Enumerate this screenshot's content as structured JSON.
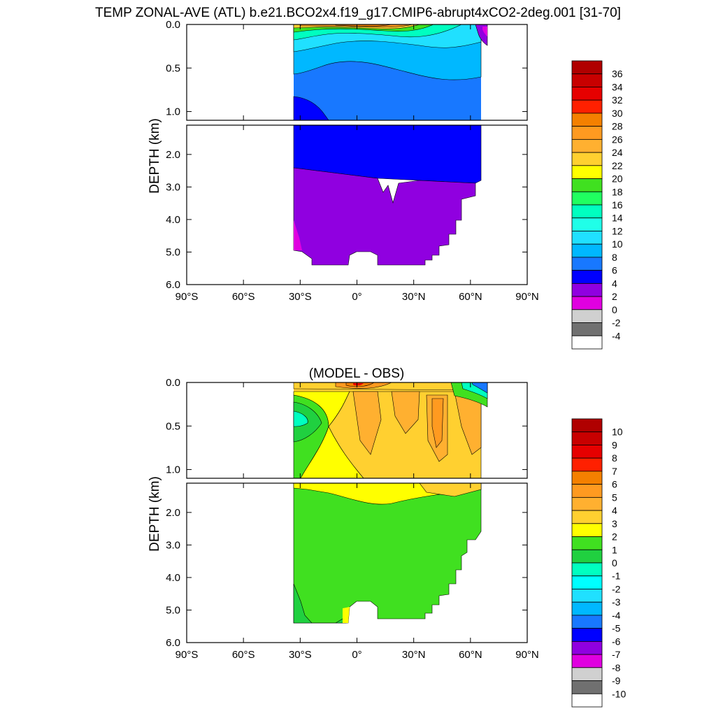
{
  "figure": {
    "title": "TEMP ZONAL-AVE (ATL) b.e21.BCO2x4.f19_g17.CMIP6-abrupt4xCO2-2deg.001 [31-70]"
  },
  "chart_data": [
    {
      "type": "heatmap",
      "subtitle": "",
      "ylabel": "DEPTH (km)",
      "x_tick_labels": [
        "90°S",
        "60°S",
        "30°S",
        "0°",
        "30°N",
        "60°N",
        "90°N"
      ],
      "x_ticks": [
        -90,
        -60,
        -30,
        0,
        30,
        60,
        90
      ],
      "xlim": [
        -90,
        90
      ],
      "upper_panel": {
        "ylim": [
          0,
          1.1
        ],
        "y_ticks": [
          0.0,
          0.5,
          1.0
        ],
        "y_tick_labels": [
          "0.0",
          "0.5",
          "1.0"
        ]
      },
      "lower_panel": {
        "ylim": [
          1.1,
          6.0
        ],
        "y_ticks": [
          2.0,
          3.0,
          4.0,
          5.0,
          6.0
        ],
        "y_tick_labels": [
          "2.0",
          "3.0",
          "4.0",
          "5.0",
          "6.0"
        ]
      },
      "colorbar": {
        "labels": [
          "36",
          "34",
          "32",
          "30",
          "28",
          "26",
          "24",
          "22",
          "20",
          "18",
          "16",
          "14",
          "12",
          "10",
          "8",
          "6",
          "4",
          "2",
          "0",
          "-2",
          "-4"
        ],
        "colors": [
          "#b00000",
          "#c80000",
          "#e60000",
          "#ff2000",
          "#f48000",
          "#ff9a20",
          "#ffb030",
          "#ffd030",
          "#ffff00",
          "#40e020",
          "#20ff60",
          "#00ffc0",
          "#20ffe8",
          "#20e0ff",
          "#00b8ff",
          "#1878ff",
          "#0000ff",
          "#9000e0",
          "#e000e0",
          "#d0d0d0",
          "#707070",
          "#ffffff"
        ]
      }
    },
    {
      "type": "heatmap",
      "subtitle": "(MODEL - OBS)",
      "ylabel": "DEPTH (km)",
      "x_tick_labels": [
        "90°S",
        "60°S",
        "30°S",
        "0°",
        "30°N",
        "60°N",
        "90°N"
      ],
      "x_ticks": [
        -90,
        -60,
        -30,
        0,
        30,
        60,
        90
      ],
      "xlim": [
        -90,
        90
      ],
      "upper_panel": {
        "ylim": [
          0,
          1.1
        ],
        "y_ticks": [
          0.0,
          0.5,
          1.0
        ],
        "y_tick_labels": [
          "0.0",
          "0.5",
          "1.0"
        ]
      },
      "lower_panel": {
        "ylim": [
          1.1,
          6.0
        ],
        "y_ticks": [
          2.0,
          3.0,
          4.0,
          5.0,
          6.0
        ],
        "y_tick_labels": [
          "2.0",
          "3.0",
          "4.0",
          "5.0",
          "6.0"
        ]
      },
      "colorbar": {
        "labels": [
          "10",
          "9",
          "8",
          "7",
          "6",
          "5",
          "4",
          "3",
          "2",
          "1",
          "0",
          "-1",
          "-2",
          "-3",
          "-4",
          "-5",
          "-6",
          "-7",
          "-8",
          "-9",
          "-10"
        ],
        "colors": [
          "#b00000",
          "#c80000",
          "#e60000",
          "#ff2000",
          "#f48000",
          "#ff9a20",
          "#ffb030",
          "#ffd030",
          "#ffff00",
          "#40e020",
          "#20d040",
          "#00ffc0",
          "#00ffff",
          "#20e0ff",
          "#00b8ff",
          "#1878ff",
          "#0000ff",
          "#9000e0",
          "#e000e0",
          "#d0d0d0",
          "#707070",
          "#ffffff"
        ]
      }
    }
  ]
}
